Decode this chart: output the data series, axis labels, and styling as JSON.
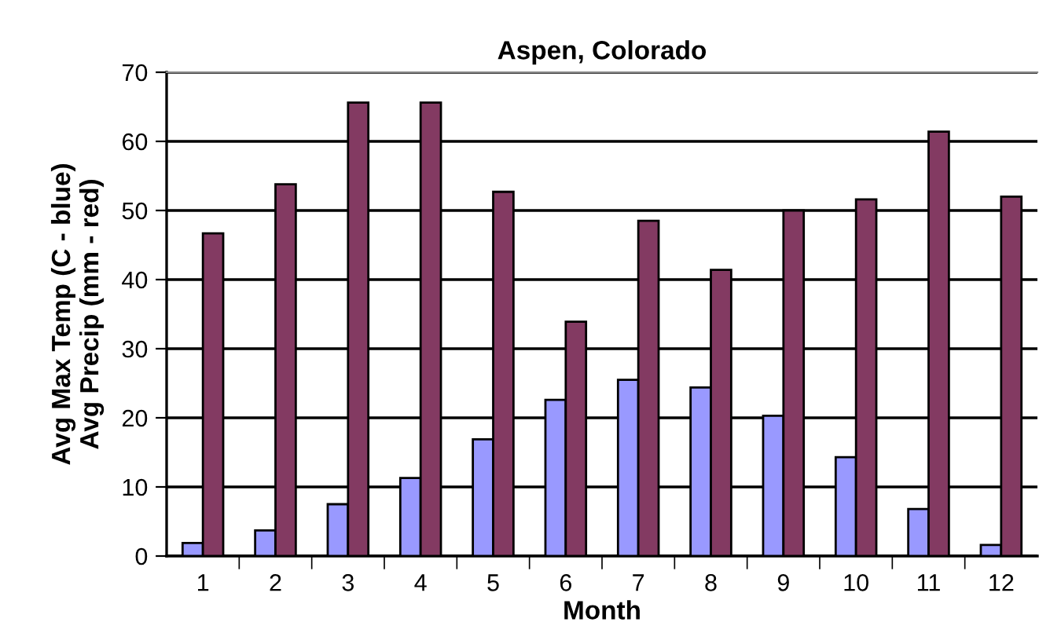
{
  "chart_data": {
    "type": "bar",
    "title": "Aspen, Colorado",
    "xlabel": "Month",
    "ylabel": "Avg Max Temp (C - blue)\nAvg Precip (mm - red)",
    "categories": [
      "1",
      "2",
      "3",
      "4",
      "5",
      "6",
      "7",
      "8",
      "9",
      "10",
      "11",
      "12"
    ],
    "series": [
      {
        "color": "#9999ff",
        "values": [
          1.9,
          3.7,
          7.5,
          11.3,
          16.9,
          22.6,
          25.5,
          24.4,
          20.3,
          14.3,
          6.8,
          1.6
        ]
      },
      {
        "color": "#833a62",
        "values": [
          46.7,
          53.8,
          65.6,
          65.6,
          52.7,
          33.9,
          48.5,
          41.4,
          50.0,
          51.6,
          61.4,
          52.0
        ]
      }
    ],
    "ylim": [
      0,
      70
    ],
    "yticks": [
      0,
      10,
      20,
      30,
      40,
      50,
      60,
      70
    ],
    "grid": "y",
    "legend": false
  }
}
